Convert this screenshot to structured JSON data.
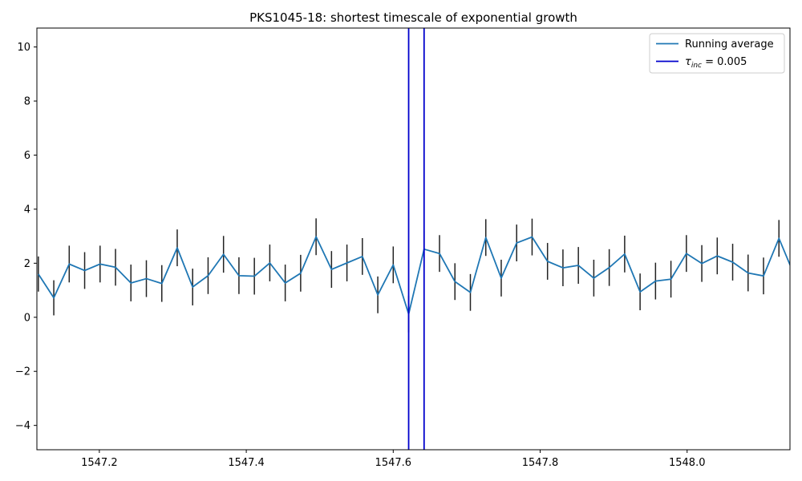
{
  "chart_data": {
    "type": "line",
    "title": "PKS1045-18: shortest timescale of exponential growth",
    "xlabel": "",
    "ylabel": "",
    "xlim": [
      1547.115,
      1548.14
    ],
    "ylim": [
      -4.9,
      10.7
    ],
    "x_ticks": [
      1547.2,
      1547.4,
      1547.6,
      1547.8,
      1548.0
    ],
    "x_tick_labels": [
      "1547.2",
      "1547.4",
      "1547.6",
      "1547.8",
      "1548.0"
    ],
    "y_ticks": [
      -4,
      -2,
      0,
      2,
      4,
      6,
      8,
      10
    ],
    "y_tick_labels": [
      "−4",
      "−2",
      "0",
      "2",
      "4",
      "6",
      "8",
      "10"
    ],
    "grid": false,
    "legend_position": "top-right",
    "series": [
      {
        "name": "Running average",
        "color": "#1f77b4",
        "x": [
          1547.117,
          1547.138,
          1547.159,
          1547.18,
          1547.201,
          1547.222,
          1547.243,
          1547.264,
          1547.285,
          1547.306,
          1547.327,
          1547.348,
          1547.369,
          1547.39,
          1547.411,
          1547.432,
          1547.453,
          1547.474,
          1547.495,
          1547.516,
          1547.537,
          1547.558,
          1547.579,
          1547.6,
          1547.621,
          1547.642,
          1547.663,
          1547.684,
          1547.705,
          1547.726,
          1547.747,
          1547.768,
          1547.789,
          1547.81,
          1547.831,
          1547.852,
          1547.873,
          1547.894,
          1547.915,
          1547.936,
          1547.957,
          1547.978,
          1547.999,
          1548.02,
          1548.041,
          1548.062,
          1548.083,
          1548.104,
          1548.125,
          1548.146
        ],
        "y": [
          1.6,
          0.72,
          1.97,
          1.73,
          1.97,
          1.85,
          1.27,
          1.43,
          1.25,
          2.57,
          1.12,
          1.54,
          2.33,
          1.54,
          1.52,
          2.01,
          1.27,
          1.63,
          2.98,
          1.77,
          2.01,
          2.25,
          0.83,
          1.94,
          0.12,
          2.52,
          2.36,
          1.32,
          0.92,
          2.95,
          1.45,
          2.75,
          2.97,
          2.07,
          1.83,
          1.92,
          1.45,
          1.84,
          2.34,
          0.94,
          1.34,
          1.41,
          2.36,
          1.99,
          2.27,
          2.04,
          1.64,
          1.53,
          2.92,
          1.55
        ],
        "yerr": [
          0.65,
          0.65,
          0.68,
          0.68,
          0.68,
          0.68,
          0.68,
          0.68,
          0.68,
          0.68,
          0.68,
          0.68,
          0.68,
          0.68,
          0.68,
          0.68,
          0.68,
          0.68,
          0.68,
          0.68,
          0.68,
          0.68,
          0.68,
          0.68,
          0.68,
          0.68,
          0.68,
          0.68,
          0.68,
          0.68,
          0.68,
          0.68,
          0.68,
          0.68,
          0.68,
          0.68,
          0.68,
          0.68,
          0.68,
          0.68,
          0.68,
          0.68,
          0.68,
          0.68,
          0.68,
          0.68,
          0.68,
          0.68,
          0.68,
          0.68
        ]
      }
    ],
    "vertical_lines": {
      "color": "#0000cc",
      "x": [
        1547.621,
        1547.642
      ]
    },
    "legend": [
      {
        "label": "Running average",
        "kind": "line",
        "color": "#1f77b4"
      },
      {
        "label_main": "τ",
        "label_sub": "inc",
        "label_rest": " = 0.005",
        "kind": "line",
        "color": "#0000cc"
      }
    ]
  }
}
